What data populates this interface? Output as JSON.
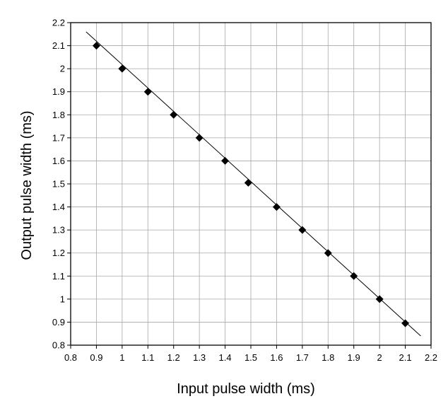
{
  "chart_data": {
    "type": "scatter",
    "title": "",
    "xlabel": "Input pulse width (ms)",
    "ylabel": "Output pulse width (ms)",
    "xlim": [
      0.8,
      2.2
    ],
    "ylim": [
      0.8,
      2.2
    ],
    "xticks": [
      "0.8",
      "0.9",
      "1",
      "1.1",
      "1.2",
      "1.3",
      "1.4",
      "1.5",
      "1.6",
      "1.7",
      "1.8",
      "1.9",
      "2",
      "2.1",
      "2.2"
    ],
    "yticks": [
      "0.8",
      "0.9",
      "1",
      "1.1",
      "1.2",
      "1.3",
      "1.4",
      "1.5",
      "1.6",
      "1.7",
      "1.8",
      "1.9",
      "2",
      "2.1",
      "2.2"
    ],
    "grid": true,
    "series": [
      {
        "marker": "diamond",
        "x": [
          0.9,
          1.0,
          1.1,
          1.2,
          1.3,
          1.4,
          1.49,
          1.6,
          1.7,
          1.8,
          1.9,
          2.0,
          2.1
        ],
        "y": [
          2.1,
          2.0,
          1.9,
          1.8,
          1.7,
          1.6,
          1.505,
          1.4,
          1.3,
          1.2,
          1.1,
          1.0,
          0.895
        ]
      }
    ],
    "fit_line": {
      "x": [
        0.86,
        2.16
      ],
      "y": [
        2.16,
        0.84
      ]
    }
  }
}
